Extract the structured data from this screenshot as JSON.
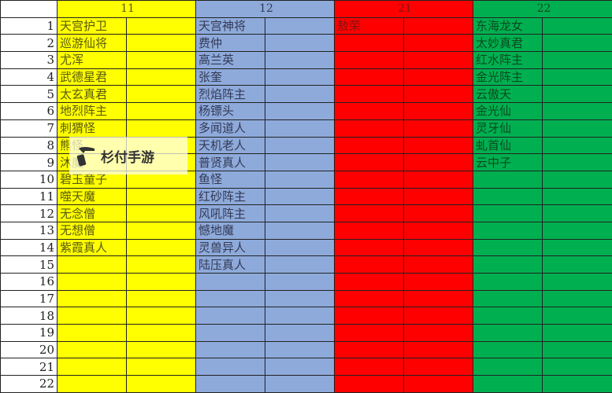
{
  "headers": [
    "",
    "11",
    "12",
    "21",
    "22"
  ],
  "colors": {
    "col11": "#ffff00",
    "col12": "#8eaadb",
    "col21": "#ff0000",
    "col22": "#00b050"
  },
  "rows": [
    [
      "1",
      "天宫护卫",
      "天宫神将",
      "敖荣",
      "东海龙女"
    ],
    [
      "2",
      "巡游仙将",
      "费仲",
      "",
      "太妙真君"
    ],
    [
      "3",
      "尤浑",
      "高兰英",
      "",
      "红水阵主"
    ],
    [
      "4",
      "武德星君",
      "张奎",
      "",
      "金光阵主"
    ],
    [
      "5",
      "太玄真君",
      "烈焰阵主",
      "",
      "云傲天"
    ],
    [
      "6",
      "地烈阵主",
      "杨镖头",
      "",
      "金光仙"
    ],
    [
      "7",
      "刺猬怪",
      "多闻道人",
      "",
      "灵牙仙"
    ],
    [
      "8",
      "熊怪",
      "天机老人",
      "",
      "虬首仙"
    ],
    [
      "9",
      "沐魔",
      "普贤真人",
      "",
      "云中子"
    ],
    [
      "10",
      "碧玉童子",
      "鱼怪",
      "",
      ""
    ],
    [
      "11",
      "噬天魔",
      "红砂阵主",
      "",
      ""
    ],
    [
      "12",
      "无念僧",
      "风吼阵主",
      "",
      ""
    ],
    [
      "13",
      "无想僧",
      "憾地魔",
      "",
      ""
    ],
    [
      "14",
      "紫霞真人",
      "灵兽异人",
      "",
      ""
    ],
    [
      "15",
      "",
      "陆压真人",
      "",
      ""
    ],
    [
      "16",
      "",
      "",
      "",
      ""
    ],
    [
      "17",
      "",
      "",
      "",
      ""
    ],
    [
      "18",
      "",
      "",
      "",
      ""
    ],
    [
      "19",
      "",
      "",
      "",
      ""
    ],
    [
      "20",
      "",
      "",
      "",
      ""
    ],
    [
      "21",
      "",
      "",
      "",
      ""
    ],
    [
      "22",
      "",
      "",
      "",
      ""
    ]
  ],
  "watermark": {
    "text": "杉付手游",
    "icon": "hammer-phone-logo-icon"
  }
}
